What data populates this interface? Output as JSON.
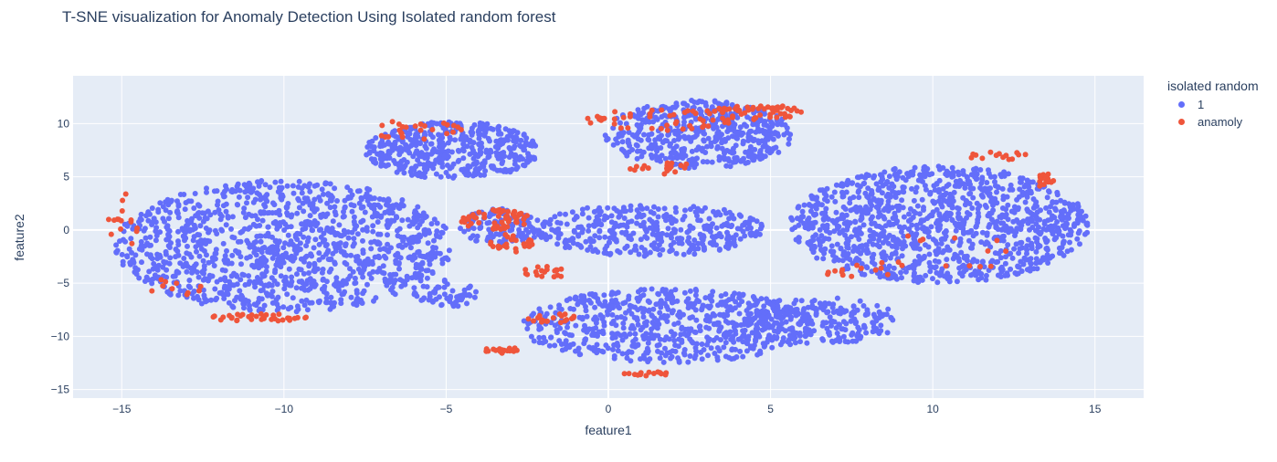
{
  "chart_data": {
    "type": "scatter",
    "title": "T-SNE visualization for Anomaly Detection Using Isolated random forest",
    "xlabel": "feature1",
    "ylabel": "feature2",
    "xlim": [
      -16.5,
      16.5
    ],
    "ylim": [
      -15.8,
      14.5
    ],
    "x_ticks": [
      -15,
      -10,
      -5,
      0,
      5,
      10,
      15
    ],
    "x_tick_labels": [
      "−15",
      "−10",
      "−5",
      "0",
      "5",
      "10",
      "15"
    ],
    "y_ticks": [
      -15,
      -10,
      -5,
      0,
      5,
      10
    ],
    "y_tick_labels": [
      "−15",
      "−10",
      "−5",
      "0",
      "5",
      "10"
    ],
    "grid": true,
    "legend": {
      "title": "isolated random",
      "position": "right",
      "entries": [
        {
          "label": "1",
          "color": "#636efa"
        },
        {
          "label": "anamoly",
          "color": "#ef553b"
        }
      ]
    },
    "background": "#e5ecf6",
    "series": [
      {
        "name": "1",
        "color": "#636efa",
        "clusters": [
          {
            "cx": -10,
            "cy": -1.5,
            "rx": 5.2,
            "ry": 6.2,
            "n": 1200
          },
          {
            "cx": -5,
            "cy": -6,
            "rx": 1.0,
            "ry": 1.3,
            "n": 60
          },
          {
            "cx": -4.8,
            "cy": 7.5,
            "rx": 2.7,
            "ry": 2.7,
            "n": 450
          },
          {
            "cx": 2.8,
            "cy": 9.0,
            "rx": 2.9,
            "ry": 3.2,
            "n": 500
          },
          {
            "cx": -3.3,
            "cy": 0.3,
            "rx": 1.3,
            "ry": 1.7,
            "n": 110
          },
          {
            "cx": 1.3,
            "cy": 0.0,
            "rx": 3.5,
            "ry": 2.5,
            "n": 380
          },
          {
            "cx": 1.8,
            "cy": -9.0,
            "rx": 4.5,
            "ry": 3.5,
            "n": 650
          },
          {
            "cx": 6.5,
            "cy": -8.5,
            "rx": 2.5,
            "ry": 2.2,
            "n": 220
          },
          {
            "cx": 10.2,
            "cy": 0.5,
            "rx": 4.6,
            "ry": 5.5,
            "n": 1150
          }
        ]
      },
      {
        "name": "anamoly",
        "color": "#ef553b",
        "clusters": [
          {
            "cx": -15.0,
            "cy": 0.5,
            "rx": 0.5,
            "ry": 3.5,
            "n": 15
          },
          {
            "cx": -13.5,
            "cy": -5.5,
            "rx": 1.0,
            "ry": 1.0,
            "n": 10
          },
          {
            "cx": -10.8,
            "cy": -8.2,
            "rx": 1.6,
            "ry": 0.4,
            "n": 35
          },
          {
            "cx": -6.0,
            "cy": 9.3,
            "rx": 1.6,
            "ry": 1.0,
            "n": 25
          },
          {
            "cx": -3.5,
            "cy": 1.0,
            "rx": 1.1,
            "ry": 1.0,
            "n": 60
          },
          {
            "cx": -3.0,
            "cy": -1.3,
            "rx": 0.7,
            "ry": 0.9,
            "n": 25
          },
          {
            "cx": 1.5,
            "cy": 10.3,
            "rx": 2.5,
            "ry": 1.0,
            "n": 45
          },
          {
            "cx": 4.5,
            "cy": 11.0,
            "rx": 1.5,
            "ry": 0.8,
            "n": 55
          },
          {
            "cx": 1.8,
            "cy": 5.8,
            "rx": 1.2,
            "ry": 0.6,
            "n": 18
          },
          {
            "cx": -2.0,
            "cy": -4.0,
            "rx": 0.8,
            "ry": 0.6,
            "n": 18
          },
          {
            "cx": -3.2,
            "cy": -11.3,
            "rx": 0.7,
            "ry": 0.3,
            "n": 20
          },
          {
            "cx": -1.5,
            "cy": -8.3,
            "rx": 1.2,
            "ry": 0.4,
            "n": 20
          },
          {
            "cx": 1.2,
            "cy": -13.5,
            "rx": 0.8,
            "ry": 0.2,
            "n": 14
          },
          {
            "cx": 13.5,
            "cy": 4.6,
            "rx": 0.3,
            "ry": 0.7,
            "n": 16
          },
          {
            "cx": 12.0,
            "cy": 7.0,
            "rx": 1.0,
            "ry": 0.4,
            "n": 14
          },
          {
            "cx": 8.0,
            "cy": -3.8,
            "rx": 1.5,
            "ry": 0.8,
            "n": 14
          },
          {
            "cx": 10.5,
            "cy": -2.0,
            "rx": 2.0,
            "ry": 2.0,
            "n": 12
          }
        ]
      }
    ]
  }
}
